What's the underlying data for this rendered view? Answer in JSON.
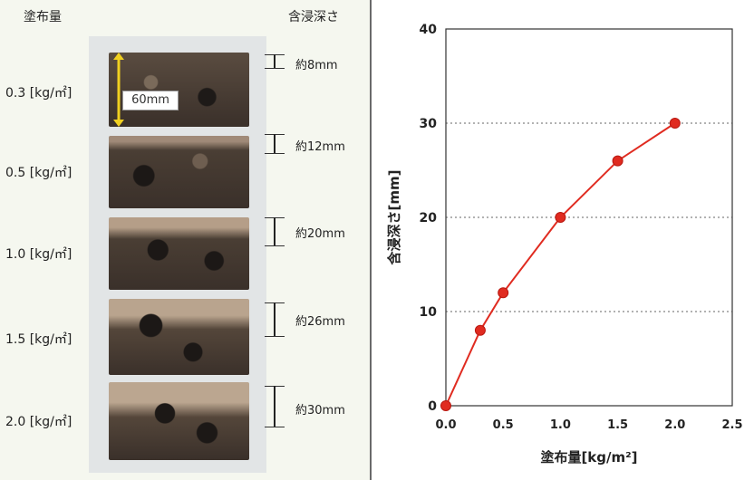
{
  "left": {
    "header_amount": "塗布量",
    "header_depth": "含浸深さ",
    "rates": [
      "0.3 [kg/㎡]",
      "0.5 [kg/㎡]",
      "1.0 [kg/㎡]",
      "1.5 [kg/㎡]",
      "2.0 [kg/㎡]"
    ],
    "depths": [
      "約8mm",
      "約12mm",
      "約20mm",
      "約26mm",
      "約30mm"
    ],
    "scale_label": "60mm"
  },
  "colors": {
    "series": "#e02b20",
    "arrow": "#f0d020",
    "grid": "#666666"
  },
  "chart_data": {
    "type": "line",
    "xlabel": "塗布量[kg/m²]",
    "ylabel": "含浸深さ[mm]",
    "x": [
      0.0,
      0.3,
      0.5,
      1.0,
      1.5,
      2.0
    ],
    "y": [
      0,
      8,
      12,
      20,
      26,
      30
    ],
    "xlim": [
      0.0,
      2.5
    ],
    "ylim": [
      0,
      40
    ],
    "xticks": [
      "0.0",
      "0.5",
      "1.0",
      "1.5",
      "2.0",
      "2.5"
    ],
    "yticks": [
      "0",
      "10",
      "20",
      "30",
      "40"
    ],
    "grid": "horizontal dotted"
  }
}
